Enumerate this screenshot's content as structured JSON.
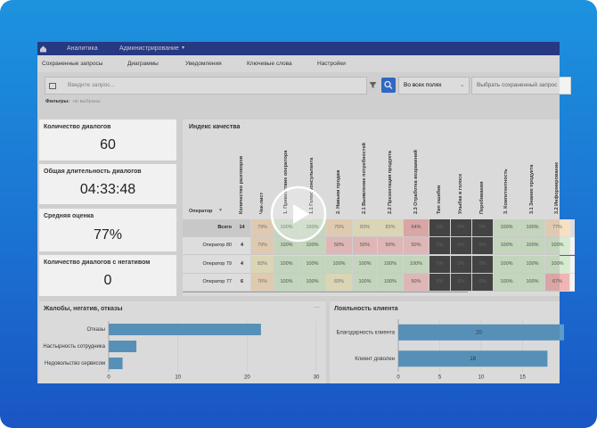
{
  "nav": {
    "tabs": [
      "Аналитика",
      "Администрирование"
    ]
  },
  "subnav": [
    "Сохраненные запросы",
    "Диаграммы",
    "Уведомления",
    "Ключевые слова",
    "Настройки"
  ],
  "search": {
    "placeholder": "Введите запрос...",
    "field": "Во всех полях",
    "saved": "Выбрать сохраненный запрос"
  },
  "filters": {
    "label": "Фильтры:",
    "value": "не выбраны"
  },
  "cards": [
    {
      "title": "Количество диалогов",
      "value": "60"
    },
    {
      "title": "Общая длительность диалогов",
      "value": "04:33:48"
    },
    {
      "title": "Средняя оценка",
      "value": "77%"
    },
    {
      "title": "Количество диалогов с негативом",
      "value": "0"
    }
  ],
  "table": {
    "title": "Индекс качества",
    "operator_header": "Оператор",
    "columns": [
      "Количество разговоров",
      "Чек-лист",
      "1. Приветствие оператора",
      "1.1 Голос консультанта",
      "2. Навыки продаж",
      "2.1 Выявление потребностей",
      "2.2 Презентация продукта",
      "2.3 Отработка возражений",
      "Тип ошибки",
      "Улыбка в голосе",
      "Перебивания",
      "3. Компетентность",
      "3.1 Знание продукта",
      "3.2 Информирование"
    ],
    "dark_columns": [
      8,
      9,
      10
    ],
    "rows": [
      {
        "name": "Всего",
        "cells": [
          "14",
          "79%",
          "100%",
          "100%",
          "75%",
          "83%",
          "83%",
          "64%",
          "0%",
          "0%",
          "0%",
          "100%",
          "100%",
          "77%"
        ]
      },
      {
        "name": "Оператор 80",
        "cells": [
          "4",
          "79%",
          "100%",
          "100%",
          "50%",
          "50%",
          "50%",
          "50%",
          "0%",
          "0%",
          "0%",
          "100%",
          "100%",
          "100%"
        ]
      },
      {
        "name": "Оператор 79",
        "cells": [
          "4",
          "83%",
          "100%",
          "100%",
          "100%",
          "100%",
          "100%",
          "100%",
          "0%",
          "0%",
          "0%",
          "100%",
          "100%",
          "100%"
        ]
      },
      {
        "name": "Оператор 77",
        "cells": [
          "6",
          "76%",
          "100%",
          "100%",
          "83%",
          "100%",
          "100%",
          "50%",
          "0%",
          "0%",
          "0%",
          "100%",
          "100%",
          "67%"
        ]
      }
    ]
  },
  "chart_data": [
    {
      "type": "hbar",
      "title": "Жалобы, негатив, отказы",
      "categories": [
        "Отказы",
        "Настырность сотрудника",
        "Недовольство сервисом"
      ],
      "values": [
        22,
        4,
        2
      ],
      "color": "#5b9dc9",
      "xlim": [
        0,
        30
      ],
      "xticks": [
        0,
        10,
        20,
        30
      ],
      "show_values": false
    },
    {
      "type": "hbar",
      "title": "Лояльность клиента",
      "categories": [
        "Благодарность клиента",
        "Клиент доволен"
      ],
      "values": [
        20,
        18
      ],
      "color": "#5b9dc9",
      "xlim": [
        0,
        20
      ],
      "xticks": [
        0,
        5,
        10,
        15
      ],
      "show_values": true
    }
  ]
}
